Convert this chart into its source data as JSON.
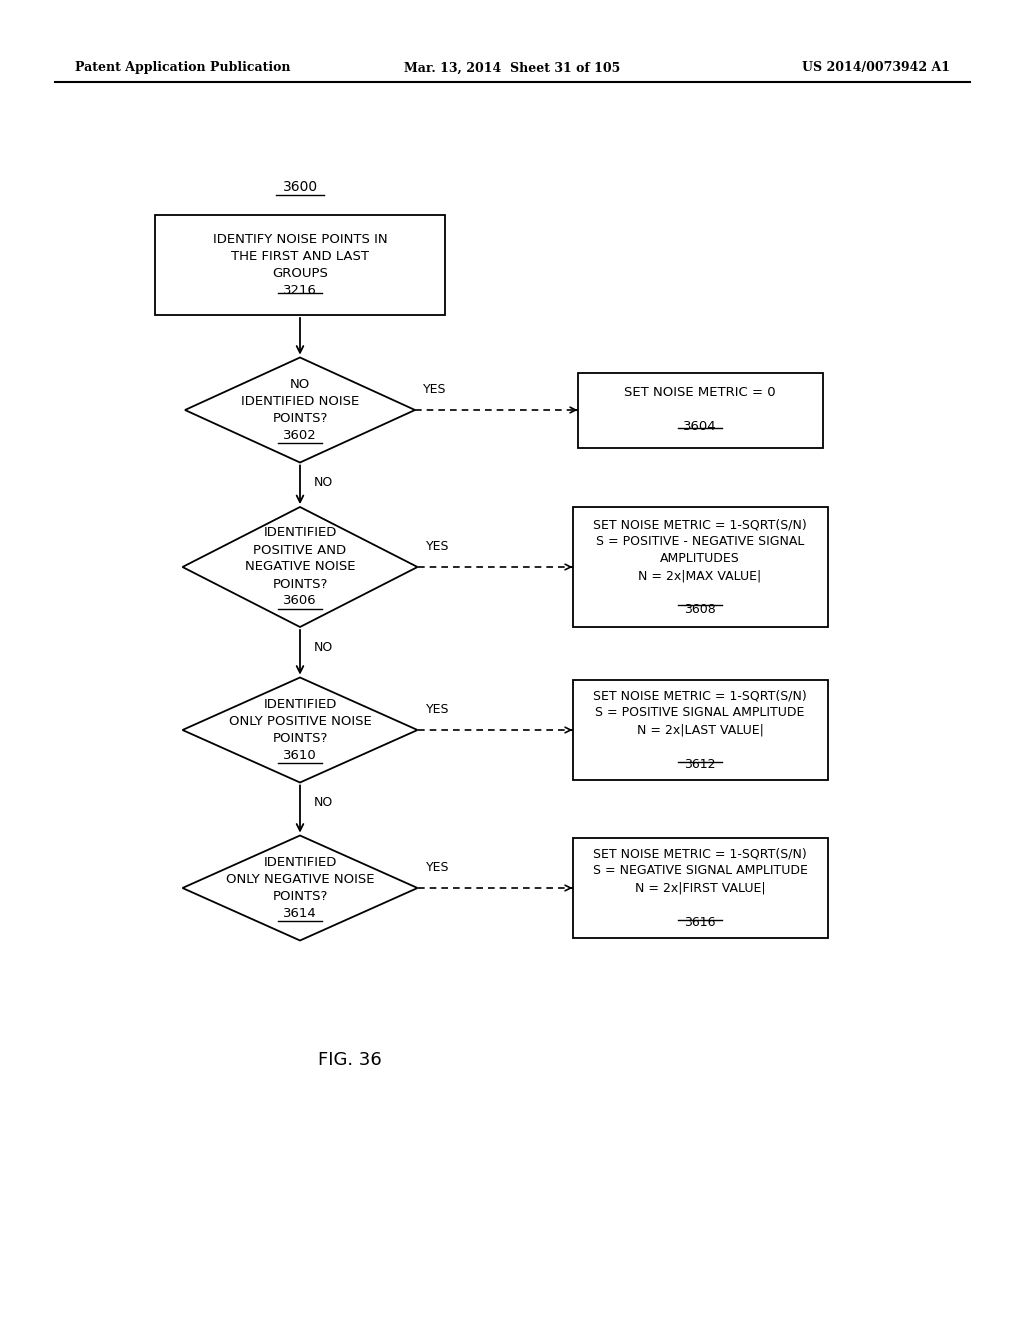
{
  "header_left": "Patent Application Publication",
  "header_mid": "Mar. 13, 2014  Sheet 31 of 105",
  "header_right": "US 2014/0073942 A1",
  "figure_label": "FIG. 36",
  "bg_color": "#ffffff",
  "rect_top_label": "IDENTIFY NOISE POINTS IN\nTHE FIRST AND LAST\nGROUPS\n3216",
  "ref_top": "3600",
  "d1_label": "NO\nIDENTIFIED NOISE\nPOINTS?\n3602",
  "r1_label": "SET NOISE METRIC = 0\n\n3604",
  "d2_label": "IDENTIFIED\nPOSITIVE AND\nNEGATIVE NOISE\nPOINTS?\n3606",
  "r2_label": "SET NOISE METRIC = 1-SQRT(S/N)\nS = POSITIVE - NEGATIVE SIGNAL\nAMPLITUDES\nN = 2x|MAX VALUE|\n\n3608",
  "d3_label": "IDENTIFIED\nONLY POSITIVE NOISE\nPOINTS?\n3610",
  "r3_label": "SET NOISE METRIC = 1-SQRT(S/N)\nS = POSITIVE SIGNAL AMPLITUDE\nN = 2x|LAST VALUE|\n\n3612",
  "d4_label": "IDENTIFIED\nONLY NEGATIVE NOISE\nPOINTS?\n3614",
  "r4_label": "SET NOISE METRIC = 1-SQRT(S/N)\nS = NEGATIVE SIGNAL AMPLITUDE\nN = 2x|FIRST VALUE|\n\n3616",
  "yes_label": "YES",
  "no_label": "NO"
}
